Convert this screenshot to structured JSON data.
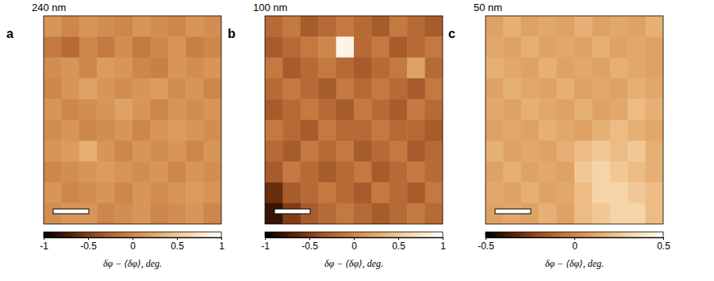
{
  "chart_data": [
    {
      "type": "heatmap",
      "title": "240 nm",
      "annotations": [
        "a"
      ],
      "tick_labels": false,
      "colorbar_label": "δφ − ⟨δφ⟩, deg.",
      "zlim": [
        -1,
        1
      ],
      "zticks": [
        -1,
        -0.5,
        0,
        0.5,
        1
      ],
      "cells": [
        [
          0.1,
          0.0,
          0.1,
          0.05,
          0.0,
          0.1,
          0.05,
          0.0,
          0.1,
          0.05
        ],
        [
          -0.1,
          -0.2,
          0.0,
          -0.1,
          0.05,
          -0.1,
          0.0,
          0.1,
          -0.05,
          0.0
        ],
        [
          0.05,
          0.1,
          0.0,
          0.15,
          0.1,
          0.0,
          -0.05,
          0.1,
          0.05,
          0.1
        ],
        [
          0.0,
          0.1,
          0.2,
          0.1,
          0.05,
          0.1,
          0.15,
          0.05,
          0.1,
          0.0
        ],
        [
          0.1,
          0.0,
          0.05,
          0.1,
          0.2,
          0.1,
          0.0,
          0.1,
          0.05,
          0.1
        ],
        [
          0.05,
          0.1,
          0.0,
          0.05,
          0.1,
          0.0,
          0.1,
          0.15,
          0.1,
          0.05
        ],
        [
          0.1,
          0.15,
          0.3,
          0.1,
          0.0,
          0.1,
          0.05,
          0.1,
          0.0,
          0.1
        ],
        [
          0.0,
          0.05,
          0.1,
          0.15,
          0.1,
          0.05,
          0.1,
          0.0,
          0.1,
          0.05
        ],
        [
          0.1,
          0.0,
          0.05,
          0.1,
          0.0,
          0.1,
          0.05,
          0.1,
          0.15,
          0.1
        ],
        [
          0.05,
          0.1,
          0.1,
          0.0,
          0.05,
          0.1,
          0.0,
          0.05,
          0.1,
          0.0
        ]
      ]
    },
    {
      "type": "heatmap",
      "title": "100 nm",
      "annotations": [
        "b"
      ],
      "tick_labels": false,
      "colorbar_label": "δφ − ⟨δφ⟩, deg.",
      "zlim": [
        -1,
        1
      ],
      "zticks": [
        -1,
        -0.5,
        0,
        0.5,
        1
      ],
      "cells": [
        [
          -0.2,
          -0.1,
          -0.3,
          -0.2,
          -0.1,
          -0.2,
          -0.3,
          -0.1,
          -0.2,
          -0.3
        ],
        [
          -0.3,
          -0.2,
          -0.1,
          0.0,
          0.9,
          -0.2,
          -0.1,
          -0.3,
          -0.2,
          -0.1
        ],
        [
          -0.1,
          -0.3,
          -0.2,
          -0.1,
          -0.2,
          -0.3,
          -0.2,
          -0.1,
          0.2,
          -0.2
        ],
        [
          -0.2,
          -0.1,
          -0.2,
          -0.3,
          -0.1,
          -0.2,
          -0.1,
          -0.2,
          -0.3,
          -0.1
        ],
        [
          -0.3,
          -0.2,
          -0.1,
          -0.2,
          -0.3,
          -0.1,
          -0.2,
          -0.3,
          -0.1,
          -0.2
        ],
        [
          -0.1,
          -0.2,
          -0.3,
          -0.1,
          -0.2,
          -0.2,
          -0.1,
          -0.2,
          -0.2,
          -0.3
        ],
        [
          -0.2,
          -0.3,
          -0.1,
          -0.2,
          -0.1,
          -0.3,
          -0.2,
          -0.1,
          -0.3,
          -0.2
        ],
        [
          -0.3,
          -0.1,
          -0.2,
          -0.3,
          -0.2,
          -0.1,
          -0.3,
          -0.2,
          -0.1,
          -0.2
        ],
        [
          -0.6,
          -0.3,
          -0.2,
          -0.1,
          -0.2,
          -0.3,
          -0.1,
          -0.2,
          -0.3,
          -0.1
        ],
        [
          -0.8,
          -0.5,
          -0.3,
          -0.2,
          -0.1,
          -0.2,
          -0.3,
          -0.2,
          -0.1,
          -0.2
        ]
      ]
    },
    {
      "type": "heatmap",
      "title": "50 nm",
      "annotations": [
        "c"
      ],
      "tick_labels": false,
      "colorbar_label": "δφ − ⟨δφ⟩, deg.",
      "zlim": [
        -0.5,
        0.5
      ],
      "zticks": [
        -0.5,
        0,
        0.5
      ],
      "cells": [
        [
          0.1,
          0.15,
          0.1,
          0.12,
          0.1,
          0.15,
          0.1,
          0.12,
          0.1,
          0.15
        ],
        [
          0.12,
          0.1,
          0.15,
          0.1,
          0.12,
          0.1,
          0.15,
          0.1,
          0.12,
          0.1
        ],
        [
          0.15,
          0.12,
          0.1,
          0.15,
          0.1,
          0.12,
          0.1,
          0.15,
          0.12,
          0.1
        ],
        [
          0.1,
          0.15,
          0.12,
          0.1,
          0.15,
          0.1,
          0.12,
          0.1,
          0.15,
          0.12
        ],
        [
          0.12,
          0.1,
          0.15,
          0.12,
          0.1,
          0.15,
          0.1,
          0.12,
          0.2,
          0.15
        ],
        [
          0.1,
          0.12,
          0.1,
          0.15,
          0.12,
          0.1,
          0.15,
          0.2,
          0.15,
          0.12
        ],
        [
          0.15,
          0.1,
          0.12,
          0.1,
          0.15,
          0.2,
          0.25,
          0.2,
          0.25,
          0.15
        ],
        [
          0.1,
          0.15,
          0.1,
          0.12,
          0.1,
          0.25,
          0.3,
          0.25,
          0.2,
          0.15
        ],
        [
          0.12,
          0.1,
          0.15,
          0.1,
          0.12,
          0.2,
          0.3,
          0.3,
          0.25,
          0.2
        ],
        [
          0.1,
          0.12,
          0.1,
          0.15,
          0.1,
          0.2,
          0.25,
          0.3,
          0.3,
          0.2
        ]
      ]
    }
  ]
}
